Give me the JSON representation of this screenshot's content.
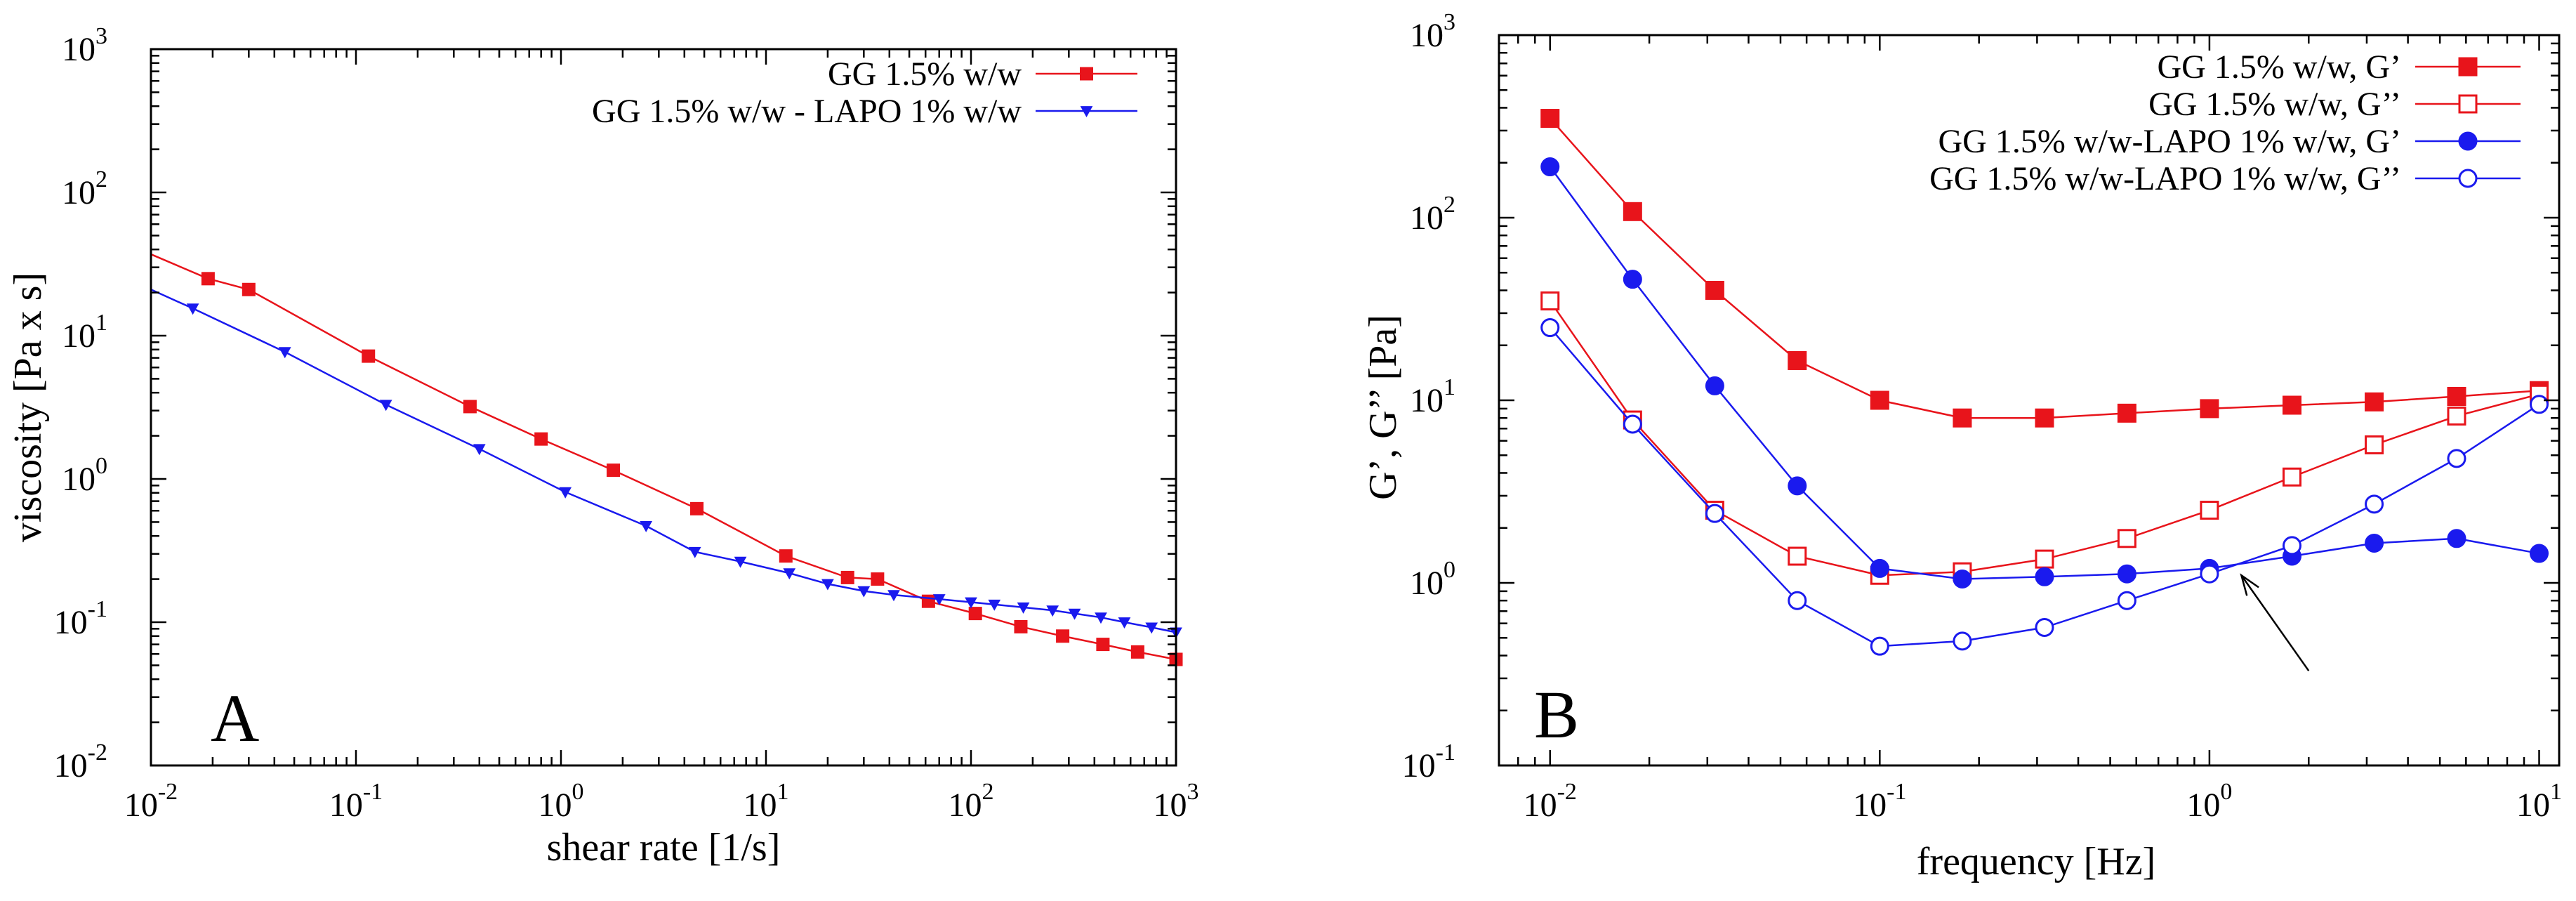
{
  "chart_data": [
    {
      "type": "line",
      "panel_label": "A",
      "xlabel": "shear rate [1/s]",
      "ylabel": "viscosity [Pa x s]",
      "x_scale": "log",
      "y_scale": "log",
      "xlim": [
        0.01,
        1000
      ],
      "ylim": [
        0.01,
        1000
      ],
      "x_ticks": [
        {
          "value": 0.01,
          "base": "10",
          "exp": "-2"
        },
        {
          "value": 0.1,
          "base": "10",
          "exp": "-1"
        },
        {
          "value": 1,
          "base": "10",
          "exp": "0"
        },
        {
          "value": 10,
          "base": "10",
          "exp": "1"
        },
        {
          "value": 100,
          "base": "10",
          "exp": "2"
        },
        {
          "value": 1000,
          "base": "10",
          "exp": "3"
        }
      ],
      "y_ticks": [
        {
          "value": 0.01,
          "base": "10",
          "exp": "-2"
        },
        {
          "value": 0.1,
          "base": "10",
          "exp": "-1"
        },
        {
          "value": 1,
          "base": "10",
          "exp": "0"
        },
        {
          "value": 10,
          "base": "10",
          "exp": "1"
        },
        {
          "value": 100,
          "base": "10",
          "exp": "2"
        },
        {
          "value": 1000,
          "base": "10",
          "exp": "3"
        }
      ],
      "grid": false,
      "legend_position": "top-right",
      "series": [
        {
          "name": "GG 1.5% w/w",
          "color": "#e8141b",
          "marker": "square-filled",
          "line_start": {
            "x": 0.01,
            "y": 37
          },
          "points": [
            {
              "x": 0.019,
              "y": 25
            },
            {
              "x": 0.03,
              "y": 21
            },
            {
              "x": 0.115,
              "y": 7.2
            },
            {
              "x": 0.36,
              "y": 3.2
            },
            {
              "x": 0.8,
              "y": 1.9
            },
            {
              "x": 1.8,
              "y": 1.15
            },
            {
              "x": 4.6,
              "y": 0.62
            },
            {
              "x": 12.5,
              "y": 0.29
            },
            {
              "x": 25,
              "y": 0.205
            },
            {
              "x": 35,
              "y": 0.2
            },
            {
              "x": 62,
              "y": 0.14
            },
            {
              "x": 105,
              "y": 0.115
            },
            {
              "x": 175,
              "y": 0.093
            },
            {
              "x": 280,
              "y": 0.08
            },
            {
              "x": 440,
              "y": 0.07
            },
            {
              "x": 650,
              "y": 0.062
            },
            {
              "x": 1000,
              "y": 0.055
            }
          ]
        },
        {
          "name": "GG 1.5% w/w - LAPO 1% w/w",
          "color": "#1a1aee",
          "marker": "triangle-down-filled",
          "line_start": {
            "x": 0.01,
            "y": 21
          },
          "points": [
            {
              "x": 0.016,
              "y": 15.5
            },
            {
              "x": 0.045,
              "y": 7.7
            },
            {
              "x": 0.14,
              "y": 3.3
            },
            {
              "x": 0.4,
              "y": 1.62
            },
            {
              "x": 1.05,
              "y": 0.81
            },
            {
              "x": 2.6,
              "y": 0.47
            },
            {
              "x": 4.5,
              "y": 0.31
            },
            {
              "x": 7.5,
              "y": 0.265
            },
            {
              "x": 13,
              "y": 0.22
            },
            {
              "x": 20,
              "y": 0.185
            },
            {
              "x": 30,
              "y": 0.165
            },
            {
              "x": 42,
              "y": 0.155
            },
            {
              "x": 70,
              "y": 0.145
            },
            {
              "x": 100,
              "y": 0.138
            },
            {
              "x": 130,
              "y": 0.133
            },
            {
              "x": 180,
              "y": 0.127
            },
            {
              "x": 250,
              "y": 0.121
            },
            {
              "x": 320,
              "y": 0.115
            },
            {
              "x": 430,
              "y": 0.108
            },
            {
              "x": 560,
              "y": 0.1
            },
            {
              "x": 760,
              "y": 0.092
            },
            {
              "x": 1000,
              "y": 0.085
            }
          ]
        }
      ]
    },
    {
      "type": "line",
      "panel_label": "B",
      "xlabel": "frequency [Hz]",
      "ylabel": "G’, G’’ [Pa]",
      "x_scale": "log",
      "y_scale": "log",
      "xlim": [
        0.007,
        11.5
      ],
      "ylim": [
        0.1,
        1000
      ],
      "x_ticks": [
        {
          "value": 0.01,
          "base": "10",
          "exp": "-2"
        },
        {
          "value": 0.1,
          "base": "10",
          "exp": "-1"
        },
        {
          "value": 1,
          "base": "10",
          "exp": "0"
        },
        {
          "value": 10,
          "base": "10",
          "exp": "1"
        }
      ],
      "y_ticks": [
        {
          "value": 0.1,
          "base": "10",
          "exp": "-1"
        },
        {
          "value": 1,
          "base": "10",
          "exp": "0"
        },
        {
          "value": 10,
          "base": "10",
          "exp": "1"
        },
        {
          "value": 100,
          "base": "10",
          "exp": "2"
        },
        {
          "value": 1000,
          "base": "10",
          "exp": "3"
        }
      ],
      "grid": false,
      "legend_position": "top-right",
      "annotation": {
        "type": "arrow",
        "from": {
          "x": 2,
          "y": 0.33
        },
        "to": {
          "x": 1.25,
          "y": 1.1
        }
      },
      "series": [
        {
          "name": "GG 1.5% w/w, G’",
          "color": "#e8141b",
          "marker": "square-filled",
          "points": [
            {
              "x": 0.01,
              "y": 350
            },
            {
              "x": 0.0178,
              "y": 108
            },
            {
              "x": 0.0316,
              "y": 40
            },
            {
              "x": 0.0562,
              "y": 16.5
            },
            {
              "x": 0.1,
              "y": 10
            },
            {
              "x": 0.178,
              "y": 8
            },
            {
              "x": 0.316,
              "y": 8
            },
            {
              "x": 0.562,
              "y": 8.5
            },
            {
              "x": 1,
              "y": 9
            },
            {
              "x": 1.78,
              "y": 9.4
            },
            {
              "x": 3.16,
              "y": 9.8
            },
            {
              "x": 5.62,
              "y": 10.5
            },
            {
              "x": 10,
              "y": 11.3
            }
          ]
        },
        {
          "name": "GG 1.5% w/w,  G’’",
          "color": "#e8141b",
          "marker": "square-open",
          "points": [
            {
              "x": 0.01,
              "y": 35
            },
            {
              "x": 0.0178,
              "y": 7.8
            },
            {
              "x": 0.0316,
              "y": 2.5
            },
            {
              "x": 0.0562,
              "y": 1.4
            },
            {
              "x": 0.1,
              "y": 1.1
            },
            {
              "x": 0.178,
              "y": 1.15
            },
            {
              "x": 0.316,
              "y": 1.35
            },
            {
              "x": 0.562,
              "y": 1.75
            },
            {
              "x": 1,
              "y": 2.5
            },
            {
              "x": 1.78,
              "y": 3.8
            },
            {
              "x": 3.16,
              "y": 5.7
            },
            {
              "x": 5.62,
              "y": 8.2
            },
            {
              "x": 10,
              "y": 10.8
            }
          ]
        },
        {
          "name": "GG 1.5% w/w-LAPO 1% w/w, G’",
          "color": "#1a1aee",
          "marker": "circle-filled",
          "points": [
            {
              "x": 0.01,
              "y": 190
            },
            {
              "x": 0.0178,
              "y": 46
            },
            {
              "x": 0.0316,
              "y": 12
            },
            {
              "x": 0.0562,
              "y": 3.4
            },
            {
              "x": 0.1,
              "y": 1.2
            },
            {
              "x": 0.178,
              "y": 1.05
            },
            {
              "x": 0.316,
              "y": 1.08
            },
            {
              "x": 0.562,
              "y": 1.12
            },
            {
              "x": 1,
              "y": 1.2
            },
            {
              "x": 1.78,
              "y": 1.4
            },
            {
              "x": 3.16,
              "y": 1.65
            },
            {
              "x": 5.62,
              "y": 1.75
            },
            {
              "x": 10,
              "y": 1.45
            }
          ]
        },
        {
          "name": "GG 1.5% w/w-LAPO 1% w/w,  G’’",
          "color": "#1a1aee",
          "marker": "circle-open",
          "points": [
            {
              "x": 0.01,
              "y": 25
            },
            {
              "x": 0.0178,
              "y": 7.4
            },
            {
              "x": 0.0316,
              "y": 2.4
            },
            {
              "x": 0.0562,
              "y": 0.8
            },
            {
              "x": 0.1,
              "y": 0.45
            },
            {
              "x": 0.178,
              "y": 0.48
            },
            {
              "x": 0.316,
              "y": 0.57
            },
            {
              "x": 0.562,
              "y": 0.8
            },
            {
              "x": 1,
              "y": 1.12
            },
            {
              "x": 1.78,
              "y": 1.6
            },
            {
              "x": 3.16,
              "y": 2.7
            },
            {
              "x": 5.62,
              "y": 4.8
            },
            {
              "x": 10,
              "y": 9.5
            }
          ]
        }
      ]
    }
  ]
}
